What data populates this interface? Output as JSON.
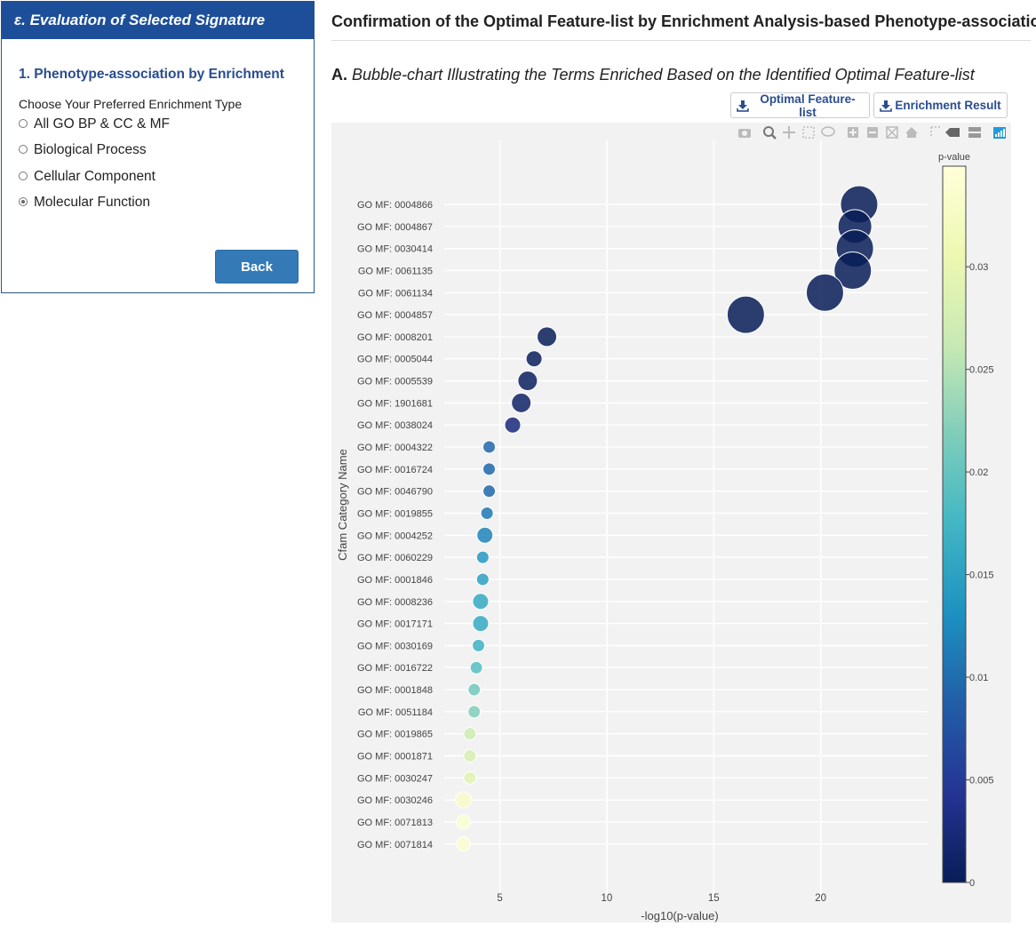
{
  "left_panel": {
    "header": "ε. Evaluation of Selected Signature",
    "section_title": "1. Phenotype-association by Enrichment",
    "choose_label": "Choose Your Preferred Enrichment Type",
    "options": [
      {
        "label": "All GO BP & CC & MF",
        "checked": false
      },
      {
        "label": "Biological Process",
        "checked": false
      },
      {
        "label": "Cellular Component",
        "checked": false
      },
      {
        "label": "Molecular Function",
        "checked": true
      }
    ],
    "back_label": "Back"
  },
  "main": {
    "title": "Confirmation of the Optimal Feature-list by Enrichment Analysis-based Phenotype-association",
    "subtitle_letter": "A.",
    "subtitle_text": "Bubble-chart Illustrating the Terms Enriched Based on the Identified Optimal Feature-list",
    "buttons": {
      "optimal": "Optimal Feature-list",
      "enrichment": "Enrichment Result"
    },
    "modebar_icons": [
      "camera-icon",
      "zoom-icon",
      "pan-icon",
      "box-select-icon",
      "lasso-icon",
      "zoom-in-icon",
      "zoom-out-icon",
      "autoscale-icon",
      "reset-axes-icon",
      "spike-lines-icon",
      "hover-closest-icon",
      "hover-compare-icon",
      "plotly-logo-icon"
    ]
  },
  "chart_data": {
    "type": "scatter",
    "xlabel": "-log10(p-value)",
    "ylabel": "Cfam Category Name",
    "colorbar_title": "p-value",
    "xlim": [
      2.4,
      25.0
    ],
    "x_ticks": [
      5,
      10,
      15,
      20
    ],
    "colorbar_range": [
      0,
      0.0349
    ],
    "colorbar_ticks": [
      0,
      0.005,
      0.01,
      0.015,
      0.02,
      0.025,
      0.03
    ],
    "colorbar_tick_labels": [
      "0",
      "0.005",
      "0.01",
      "0.015",
      "0.02",
      "0.025",
      "0.03"
    ],
    "colorscale": [
      "#ffffd9",
      "#edf8b1",
      "#c7e9b4",
      "#7fcdbb",
      "#41b6c4",
      "#1d91c0",
      "#225ea8",
      "#253494",
      "#081d58"
    ],
    "grid": true,
    "points": [
      {
        "term": "GO MF: 0004866",
        "x": 21.8,
        "pvalue": 0.0,
        "size": 21
      },
      {
        "term": "GO MF: 0004867",
        "x": 21.6,
        "pvalue": 0.0,
        "size": 19
      },
      {
        "term": "GO MF: 0030414",
        "x": 21.6,
        "pvalue": 0.0,
        "size": 21
      },
      {
        "term": "GO MF: 0061135",
        "x": 21.5,
        "pvalue": 0.0,
        "size": 21
      },
      {
        "term": "GO MF: 0061134",
        "x": 20.2,
        "pvalue": 0.0,
        "size": 21
      },
      {
        "term": "GO MF: 0004857",
        "x": 16.5,
        "pvalue": 0.0,
        "size": 21
      },
      {
        "term": "GO MF: 0008201",
        "x": 7.2,
        "pvalue": 0.0001,
        "size": 11
      },
      {
        "term": "GO MF: 0005044",
        "x": 6.6,
        "pvalue": 0.0003,
        "size": 9
      },
      {
        "term": "GO MF: 0005539",
        "x": 6.3,
        "pvalue": 0.0005,
        "size": 11
      },
      {
        "term": "GO MF: 1901681",
        "x": 6.0,
        "pvalue": 0.001,
        "size": 11
      },
      {
        "term": "GO MF: 0038024",
        "x": 5.6,
        "pvalue": 0.0025,
        "size": 9
      },
      {
        "term": "GO MF: 0004322",
        "x": 4.5,
        "pvalue": 0.0095,
        "size": 7
      },
      {
        "term": "GO MF: 0016724",
        "x": 4.5,
        "pvalue": 0.0095,
        "size": 7
      },
      {
        "term": "GO MF: 0046790",
        "x": 4.5,
        "pvalue": 0.0095,
        "size": 7
      },
      {
        "term": "GO MF: 0019855",
        "x": 4.4,
        "pvalue": 0.011,
        "size": 7
      },
      {
        "term": "GO MF: 0004252",
        "x": 4.3,
        "pvalue": 0.012,
        "size": 9
      },
      {
        "term": "GO MF: 0060229",
        "x": 4.2,
        "pvalue": 0.014,
        "size": 7
      },
      {
        "term": "GO MF: 0001846",
        "x": 4.2,
        "pvalue": 0.015,
        "size": 7
      },
      {
        "term": "GO MF: 0008236",
        "x": 4.1,
        "pvalue": 0.016,
        "size": 9
      },
      {
        "term": "GO MF: 0017171",
        "x": 4.1,
        "pvalue": 0.016,
        "size": 9
      },
      {
        "term": "GO MF: 0030169",
        "x": 4.0,
        "pvalue": 0.017,
        "size": 7
      },
      {
        "term": "GO MF: 0016722",
        "x": 3.9,
        "pvalue": 0.019,
        "size": 7
      },
      {
        "term": "GO MF: 0001848",
        "x": 3.8,
        "pvalue": 0.021,
        "size": 7
      },
      {
        "term": "GO MF: 0051184",
        "x": 3.8,
        "pvalue": 0.022,
        "size": 7
      },
      {
        "term": "GO MF: 0019865",
        "x": 3.6,
        "pvalue": 0.027,
        "size": 7
      },
      {
        "term": "GO MF: 0001871",
        "x": 3.6,
        "pvalue": 0.028,
        "size": 7
      },
      {
        "term": "GO MF: 0030247",
        "x": 3.6,
        "pvalue": 0.029,
        "size": 7
      },
      {
        "term": "GO MF: 0030246",
        "x": 3.3,
        "pvalue": 0.033,
        "size": 9
      },
      {
        "term": "GO MF: 0071813",
        "x": 3.3,
        "pvalue": 0.034,
        "size": 8
      },
      {
        "term": "GO MF: 0071814",
        "x": 3.3,
        "pvalue": 0.034,
        "size": 8
      }
    ]
  }
}
